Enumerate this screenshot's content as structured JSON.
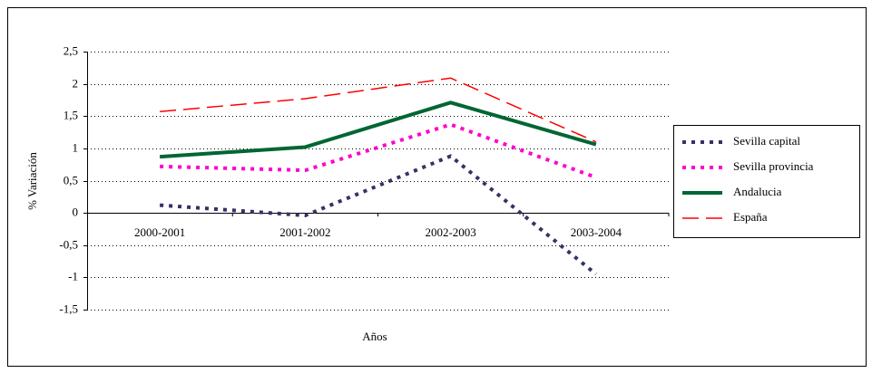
{
  "chart_data": {
    "type": "line",
    "categories": [
      "2000-2001",
      "2001-2002",
      "2002-2003",
      "2003-2004"
    ],
    "series": [
      {
        "name": "Sevilla capital",
        "color": "#333366",
        "line_style": "dotted",
        "values": [
          0.12,
          -0.04,
          0.88,
          -0.95
        ]
      },
      {
        "name": "Sevilla provincia",
        "color": "#ff00cc",
        "line_style": "dotted",
        "values": [
          0.72,
          0.66,
          1.37,
          0.55
        ]
      },
      {
        "name": "Andalucia",
        "color": "#006633",
        "line_style": "solid",
        "values": [
          0.87,
          1.02,
          1.71,
          1.06
        ]
      },
      {
        "name": "España",
        "color": "#ff0000",
        "line_style": "dashed",
        "values": [
          1.57,
          1.77,
          2.09,
          1.1
        ]
      }
    ],
    "xlabel": "Años",
    "ylabel": "% Variación",
    "ylim": [
      -1.5,
      2.5
    ],
    "yticks": [
      {
        "value": -1.5,
        "label": "-1,5"
      },
      -1,
      {
        "value": -0.5,
        "label": "-0,5"
      },
      0,
      {
        "value": 0.5,
        "label": "0,5"
      },
      1,
      {
        "value": 1.5,
        "label": "1,5"
      },
      2,
      {
        "value": 2.5,
        "label": "2,5"
      }
    ],
    "grid": true,
    "legend": "right"
  }
}
